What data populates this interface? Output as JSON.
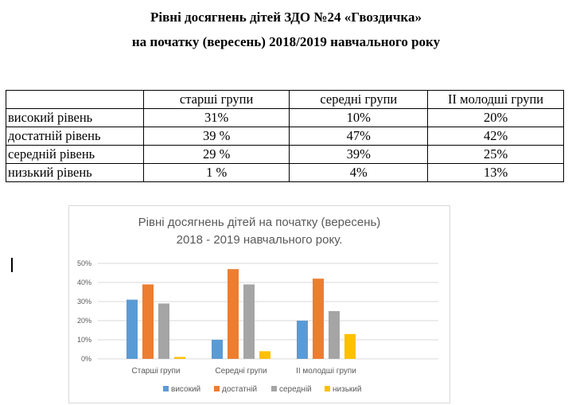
{
  "document": {
    "title_line1": "Рівні досягнень дітей ЗДО №24 «Гвоздичка»",
    "title_line2": "на початку (вересень) 2018/2019 навчального року"
  },
  "table": {
    "headers": [
      "",
      "старші групи",
      "середні групи",
      "ІІ молодші групи"
    ],
    "rows": [
      {
        "label": "високий рівень",
        "values": [
          "31%",
          "10%",
          "20%"
        ]
      },
      {
        "label": "достатній рівень",
        "values": [
          "39 %",
          "47%",
          "42%"
        ]
      },
      {
        "label": "середній рівень",
        "values": [
          "29 %",
          "39%",
          "25%"
        ]
      },
      {
        "label": "низький рівень",
        "values": [
          "1 %",
          "4%",
          "13%"
        ]
      }
    ]
  },
  "chart_data": {
    "type": "bar",
    "title_line1": "Рівні досягнень дітей на початку (вересень)",
    "title_line2": "2018 - 2019 навчального року.",
    "categories": [
      "Старші групи",
      "Середні групи",
      "ІІ молодші групи"
    ],
    "series": [
      {
        "name": "високий",
        "color": "#5b9bd5",
        "values": [
          31,
          10,
          20
        ]
      },
      {
        "name": "достатній",
        "color": "#ed7d31",
        "values": [
          39,
          47,
          42
        ]
      },
      {
        "name": "середній",
        "color": "#a5a5a5",
        "values": [
          29,
          39,
          25
        ]
      },
      {
        "name": "низький",
        "color": "#ffc000",
        "values": [
          1,
          4,
          13
        ]
      }
    ],
    "ylim": [
      0,
      50
    ],
    "yticks": [
      "0%",
      "10%",
      "20%",
      "30%",
      "40%",
      "50%"
    ],
    "grid": true,
    "legend": "bottom"
  }
}
